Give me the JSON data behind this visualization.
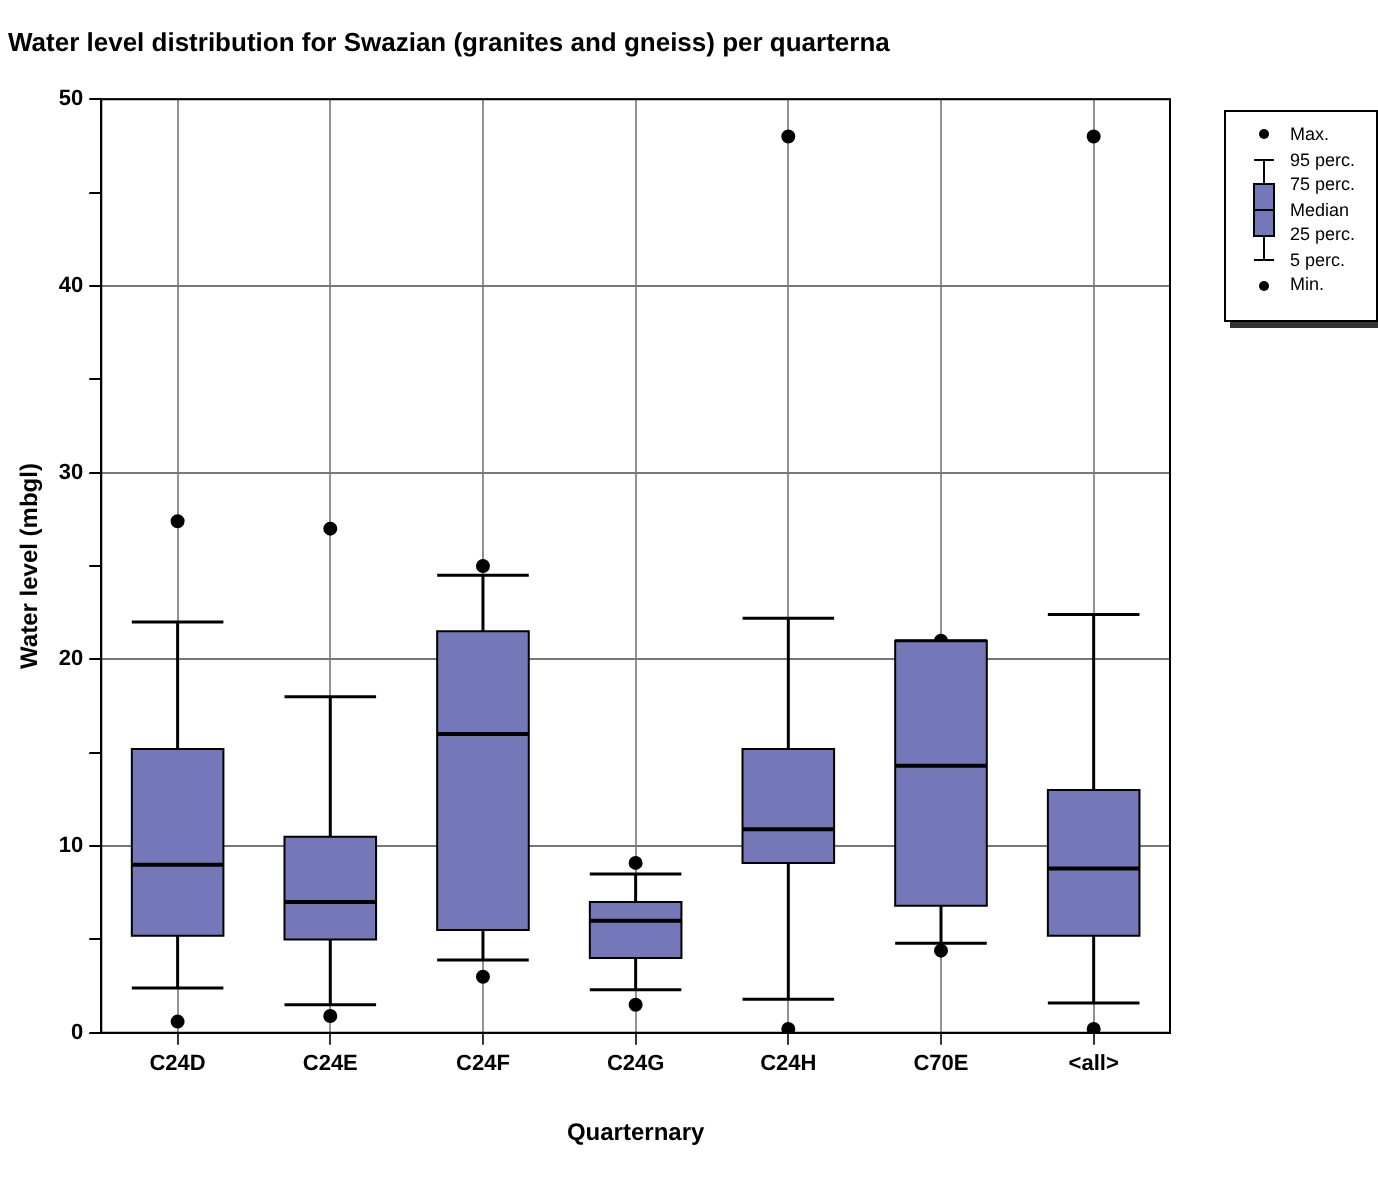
{
  "chart_data": {
    "type": "box",
    "title": "Water level distribution for Swazian (granites and gneiss) per quarterna",
    "xlabel": "Quarternary",
    "ylabel": "Water level (mbgl)",
    "categories": [
      "C24D",
      "C24E",
      "C24F",
      "C24G",
      "C24H",
      "C70E",
      "<all>"
    ],
    "color": "#7478b8",
    "boxes": [
      {
        "low": 2.4,
        "q1": 5.2,
        "median": 9.0,
        "q3": 15.2,
        "high": 22.0,
        "outliers": [
          0.6,
          27.4
        ]
      },
      {
        "low": 1.5,
        "q1": 5.0,
        "median": 7.0,
        "q3": 10.5,
        "high": 18.0,
        "outliers": [
          0.9,
          27.0
        ]
      },
      {
        "low": 3.9,
        "q1": 5.5,
        "median": 16.0,
        "q3": 21.5,
        "high": 24.5,
        "outliers": [
          3.0,
          25.0
        ]
      },
      {
        "low": 2.3,
        "q1": 4.0,
        "median": 6.0,
        "q3": 7.0,
        "high": 8.5,
        "outliers": [
          1.5,
          9.1
        ]
      },
      {
        "low": 1.8,
        "q1": 9.1,
        "median": 10.9,
        "q3": 15.2,
        "high": 22.2,
        "outliers": [
          0.2,
          48.0
        ]
      },
      {
        "low": 4.8,
        "q1": 6.8,
        "median": 14.3,
        "q3": 21.0,
        "high": 21.0,
        "outliers": [
          4.4,
          21.0
        ]
      },
      {
        "low": 1.6,
        "q1": 5.2,
        "median": 8.8,
        "q3": 13.0,
        "high": 22.4,
        "outliers": [
          0.2,
          48.0
        ]
      }
    ],
    "ylim": [
      0,
      50
    ],
    "yticks": [
      0,
      {
        "value": 5,
        "label": null
      },
      10,
      {
        "value": 15,
        "label": null
      },
      20,
      {
        "value": 25,
        "label": null
      },
      30,
      {
        "value": 35,
        "label": null
      },
      40,
      {
        "value": 45,
        "label": null
      },
      50
    ],
    "grid": true,
    "annotations": [
      "Max.",
      "95 perc.",
      "75 perc.",
      "Median",
      "25 perc.",
      "5 perc.",
      "Min."
    ]
  }
}
